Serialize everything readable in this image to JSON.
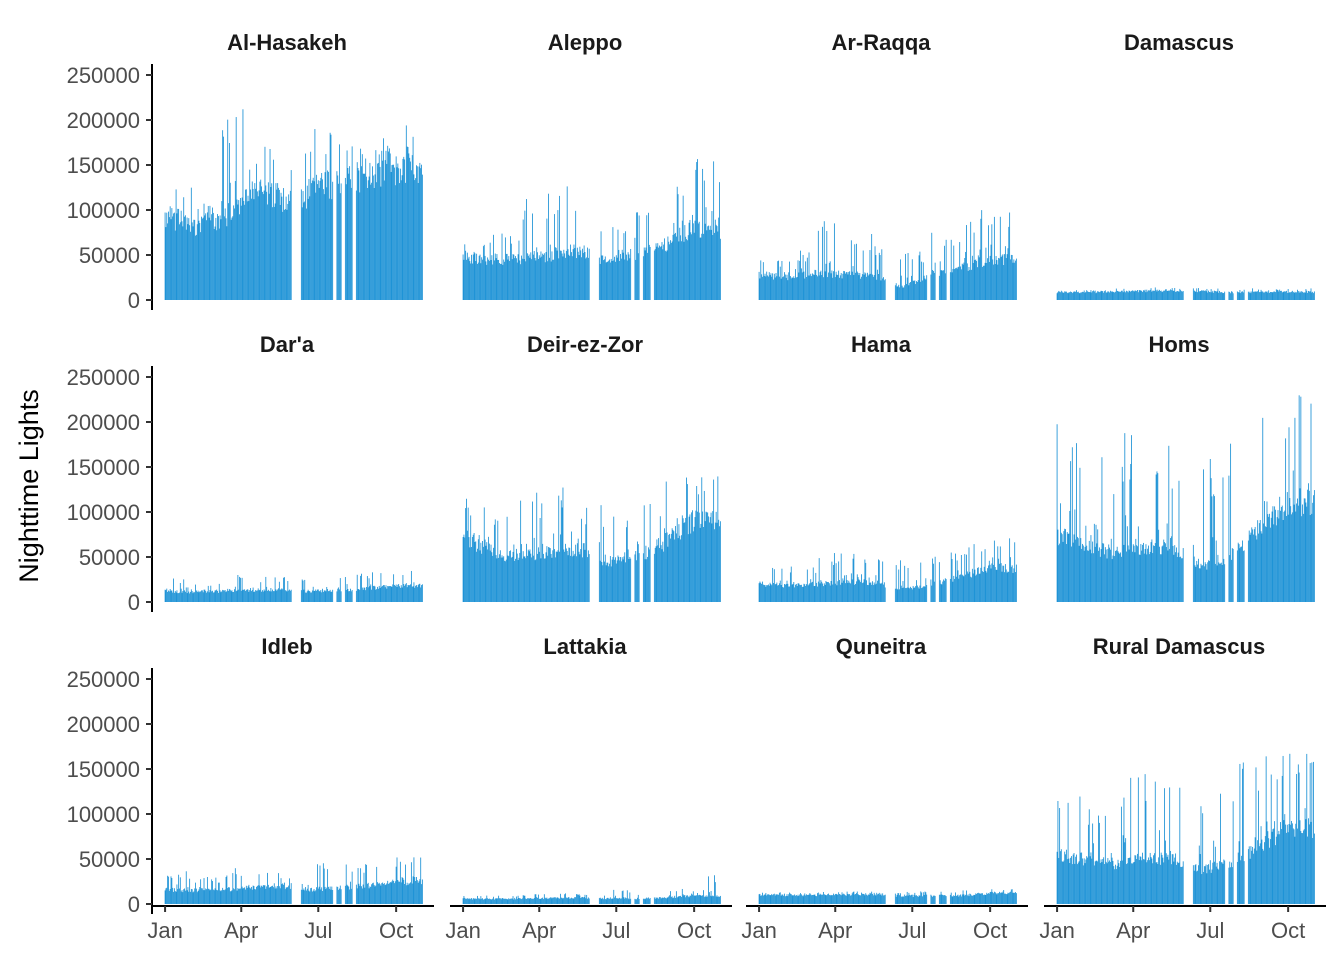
{
  "chart_data": {
    "type": "bar",
    "ylabel": "Nighttime Lights",
    "xlabel": "",
    "bar_color": "#1f93d6",
    "ylim": [
      0,
      260000
    ],
    "y_ticks": [
      0,
      50000,
      100000,
      150000,
      200000,
      250000
    ],
    "y_tick_labels": [
      "0",
      "50000",
      "100000",
      "150000",
      "200000",
      "250000"
    ],
    "x_range_days": [
      -6,
      313
    ],
    "x_ticks": [
      0,
      90,
      181,
      273
    ],
    "x_tick_labels": [
      "Jan",
      "Apr",
      "Jul",
      "Oct"
    ],
    "gaps": [
      [
        150,
        160
      ],
      [
        199,
        202
      ],
      [
        209,
        212
      ],
      [
        222,
        225
      ],
      [
        319,
        320
      ]
    ],
    "series_note": "daily sums, values estimated from bar heights",
    "panels": [
      {
        "name": "Al-Hasakeh",
        "base": [
          95000,
          82000,
          90000,
          120000,
          112000,
          118000,
          128000,
          140000,
          150000
        ],
        "peak": [
          135000,
          110000,
          215000,
          175000,
          165000,
          192000,
          175000,
          180000,
          198000
        ]
      },
      {
        "name": "Aleppo",
        "base": [
          48000,
          45000,
          45000,
          50000,
          55000,
          42000,
          48000,
          60000,
          80000
        ],
        "peak": [
          65000,
          75000,
          120000,
          130000,
          95000,
          85000,
          110000,
          135000,
          160000
        ]
      },
      {
        "name": "Ar-Raqqa",
        "base": [
          28000,
          25000,
          30000,
          28000,
          27000,
          15000,
          28000,
          35000,
          45000
        ],
        "peak": [
          45000,
          55000,
          92000,
          75000,
          60000,
          55000,
          75000,
          100000,
          105000
        ]
      },
      {
        "name": "Damascus",
        "base": [
          8500,
          8500,
          9000,
          10000,
          10500,
          10000,
          8500,
          8500,
          9000
        ],
        "peak": [
          11000,
          11000,
          13000,
          14000,
          13500,
          14000,
          13000,
          12000,
          13000
        ]
      },
      {
        "name": "Dar'a",
        "base": [
          12000,
          11000,
          12000,
          13000,
          14000,
          12000,
          13000,
          15000,
          18000
        ],
        "peak": [
          28000,
          22000,
          30000,
          28000,
          28000,
          30000,
          36000,
          33000,
          35000
        ]
      },
      {
        "name": "Deir-ez-Zor",
        "base": [
          75000,
          55000,
          50000,
          55000,
          60000,
          45000,
          50000,
          65000,
          90000
        ],
        "peak": [
          115000,
          98000,
          125000,
          135000,
          110000,
          100000,
          120000,
          140000,
          140000
        ]
      },
      {
        "name": "Hama",
        "base": [
          20000,
          18000,
          20000,
          22000,
          22000,
          14000,
          20000,
          28000,
          38000
        ],
        "peak": [
          42000,
          40000,
          55000,
          55000,
          50000,
          50000,
          55000,
          65000,
          78000
        ]
      },
      {
        "name": "Homs",
        "base": [
          75000,
          60000,
          55000,
          60000,
          62000,
          40000,
          50000,
          80000,
          110000
        ],
        "peak": [
          200000,
          165000,
          190000,
          185000,
          150000,
          160000,
          210000,
          225000,
          248000
        ]
      },
      {
        "name": "Idleb",
        "base": [
          16000,
          15000,
          16000,
          18000,
          20000,
          16000,
          18000,
          20000,
          24000
        ],
        "peak": [
          38000,
          30000,
          40000,
          35000,
          35000,
          52000,
          45000,
          48000,
          52000
        ]
      },
      {
        "name": "Lattakia",
        "base": [
          6000,
          5500,
          6000,
          6500,
          7000,
          6000,
          6000,
          7000,
          9000
        ],
        "peak": [
          10000,
          10000,
          11000,
          12000,
          11000,
          18000,
          12000,
          18000,
          35000
        ]
      },
      {
        "name": "Quneitra",
        "base": [
          10000,
          10000,
          10000,
          10500,
          11000,
          9000,
          9000,
          9500,
          12000
        ],
        "peak": [
          13000,
          13000,
          13500,
          14000,
          13000,
          14000,
          14000,
          16000,
          18000
        ]
      },
      {
        "name": "Rural Damascus",
        "base": [
          55000,
          48000,
          45000,
          50000,
          52000,
          38000,
          45000,
          65000,
          85000
        ],
        "peak": [
          128000,
          120000,
          150000,
          158000,
          130000,
          140000,
          160000,
          165000,
          168000
        ]
      }
    ]
  }
}
